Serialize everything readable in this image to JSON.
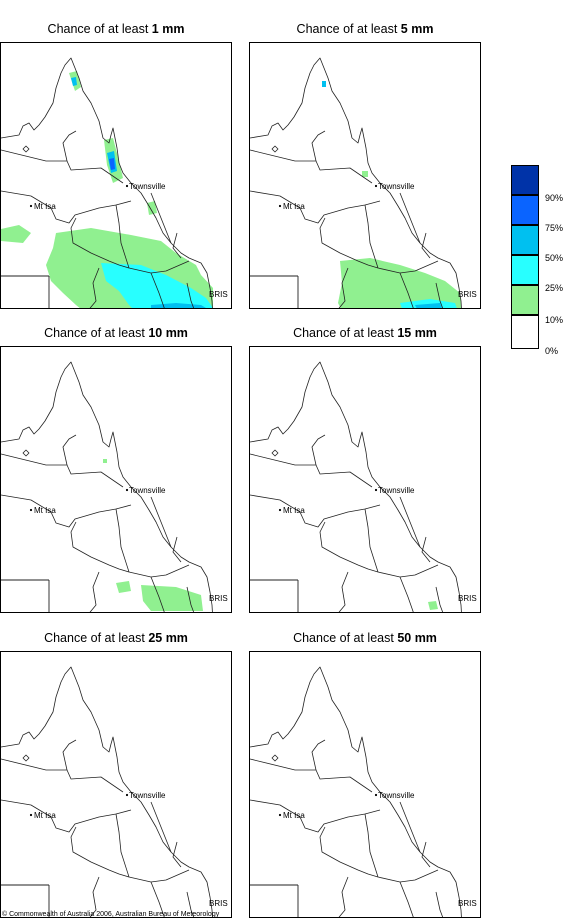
{
  "panels": [
    {
      "prefix": "Chance of at least ",
      "amount": "1 mm"
    },
    {
      "prefix": "Chance of at least ",
      "amount": "5 mm"
    },
    {
      "prefix": "Chance of at least ",
      "amount": "10 mm"
    },
    {
      "prefix": "Chance of at least ",
      "amount": "15 mm"
    },
    {
      "prefix": "Chance of at least ",
      "amount": "25 mm"
    },
    {
      "prefix": "Chance of at least ",
      "amount": "50 mm"
    }
  ],
  "places": {
    "townsville": "Townsville",
    "mt_isa": "Mt Isa",
    "bris": "BRIS"
  },
  "legend": {
    "labels": [
      "90%",
      "75%",
      "50%",
      "25%",
      "10%",
      "0%"
    ],
    "colors": [
      "#0033a8",
      "#0a64ff",
      "#00c0f0",
      "#28ffff",
      "#90f090",
      "#ffffff"
    ]
  },
  "footer": "© Commonwealth of Australia 2006, Australian Bureau of Meteorology"
}
